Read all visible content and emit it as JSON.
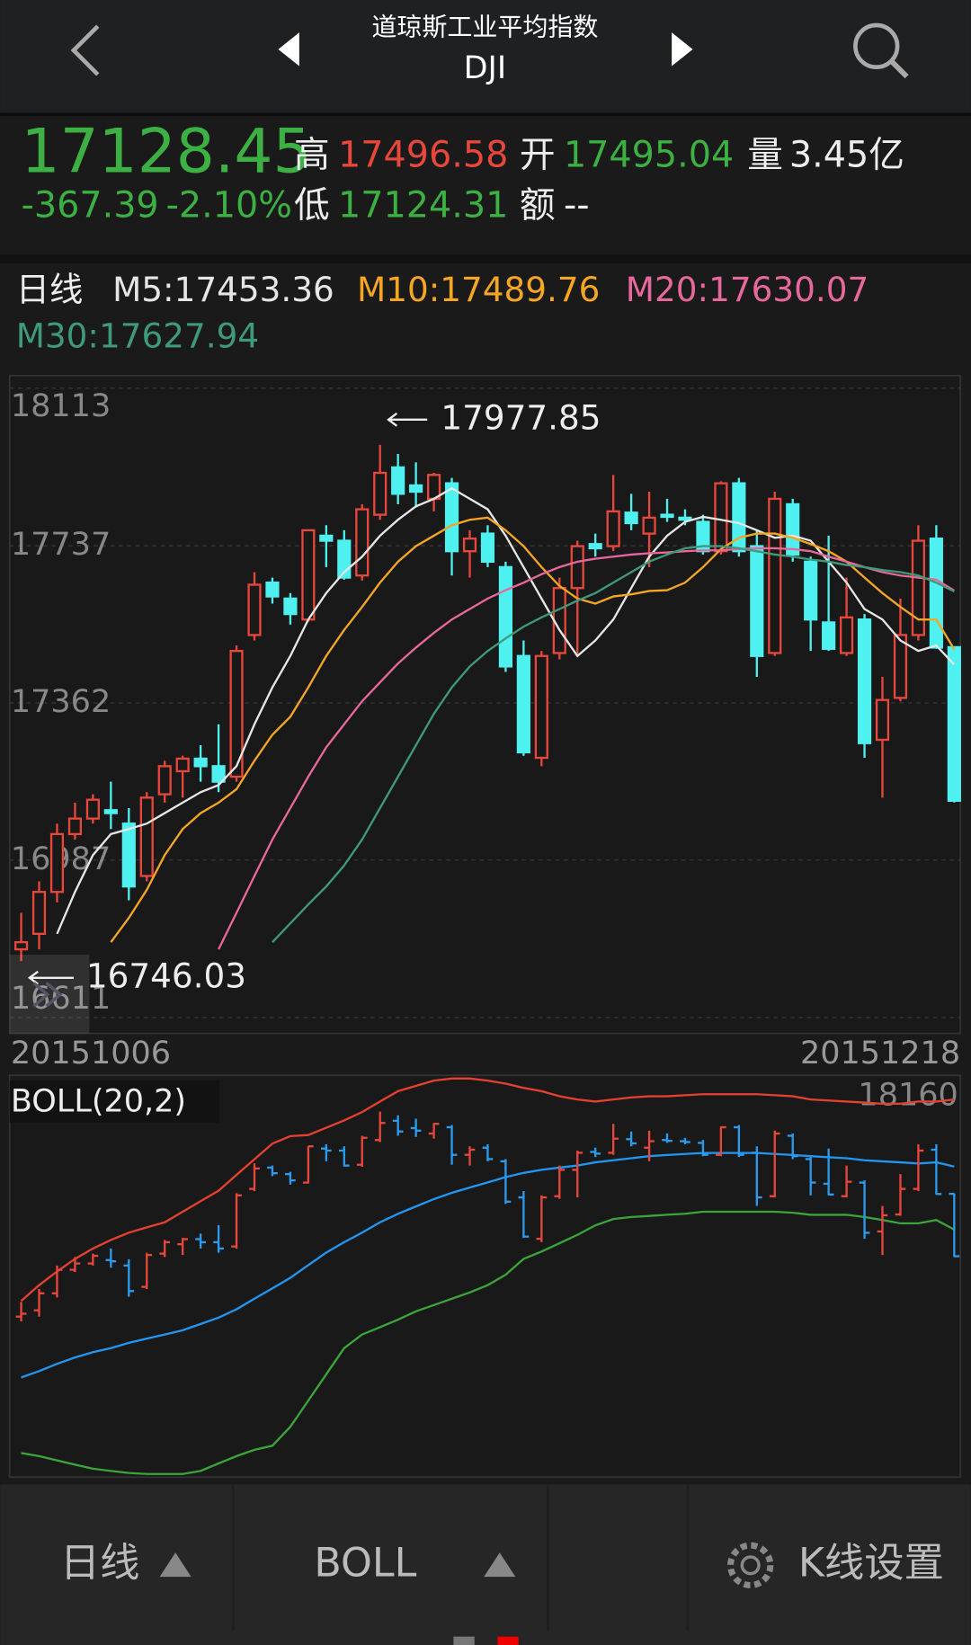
{
  "header": {
    "title": "道琼斯工业平均指数",
    "symbol": "DJI"
  },
  "quote": {
    "price": "17128.45",
    "change": "-367.39",
    "change_pct": "-2.10%",
    "high_label": "高",
    "high": "17496.58",
    "open_label": "开",
    "open": "17495.04",
    "volume_label": "量",
    "volume": "3.45亿",
    "low_label": "低",
    "low": "17124.31",
    "amount_label": "额",
    "amount": "--"
  },
  "chart_data": [
    {
      "type": "candlestick",
      "period": "日线",
      "date_start": "20151006",
      "date_end": "20151218",
      "up_color": "#e8473b",
      "down_color": "#4ef0f0",
      "grid": true,
      "ylim": [
        16611,
        18113
      ],
      "yticks": [
        18113,
        17737,
        17362,
        16987,
        16611
      ],
      "open": [
        16774,
        16811,
        16911,
        17049,
        17086,
        17106,
        17074,
        16949,
        17144,
        17199,
        17229,
        17211,
        17186,
        17524,
        17649,
        17611,
        17561,
        17761,
        17749,
        17666,
        17811,
        17924,
        17881,
        17849,
        17886,
        17724,
        17766,
        17686,
        17474,
        17231,
        17481,
        17636,
        17741,
        17736,
        17816,
        17766,
        17811,
        17804,
        17794,
        17724,
        17886,
        17736,
        17481,
        17836,
        17699,
        17554,
        17481,
        17561,
        17274,
        17374,
        17524,
        17754,
        17495.04
      ],
      "high": [
        16861,
        16936,
        17074,
        17124,
        17144,
        17174,
        17111,
        17149,
        17224,
        17236,
        17261,
        17311,
        17499,
        17674,
        17661,
        17624,
        17774,
        17786,
        17774,
        17836,
        17977.85,
        17956,
        17936,
        17911,
        17899,
        17774,
        17786,
        17699,
        17511,
        17486,
        17661,
        17749,
        17766,
        17906,
        17861,
        17866,
        17849,
        17824,
        17811,
        17891,
        17899,
        17774,
        17866,
        17849,
        17711,
        17761,
        17661,
        17574,
        17424,
        17611,
        17786,
        17786,
        17496.58
      ],
      "low": [
        16746.03,
        16774,
        16886,
        17036,
        17074,
        17061,
        16891,
        16936,
        17124,
        17136,
        17174,
        17149,
        17174,
        17511,
        17599,
        17549,
        17556,
        17686,
        17656,
        17654,
        17799,
        17836,
        17829,
        17819,
        17666,
        17661,
        17686,
        17436,
        17236,
        17211,
        17466,
        17474,
        17711,
        17724,
        17774,
        17686,
        17794,
        17786,
        17716,
        17716,
        17711,
        17424,
        17474,
        17699,
        17486,
        17486,
        17474,
        17231,
        17136,
        17366,
        17511,
        17491,
        17124.31
      ],
      "close": [
        16791,
        16911,
        17049,
        17086,
        17131,
        17099,
        16924,
        17136,
        17211,
        17229,
        17211,
        17174,
        17486,
        17644,
        17616,
        17574,
        17774,
        17749,
        17661,
        17824,
        17911,
        17861,
        17866,
        17906,
        17724,
        17754,
        17699,
        17449,
        17244,
        17474,
        17636,
        17736,
        17731,
        17819,
        17791,
        17804,
        17806,
        17799,
        17724,
        17886,
        17724,
        17474,
        17849,
        17716,
        17561,
        17491,
        17566,
        17266,
        17369,
        17524,
        17749,
        17494,
        17128.45
      ],
      "series": [
        {
          "name": "M5",
          "label": "M5:17453.36",
          "color": "#e6e6e6",
          "values": [
            null,
            null,
            16811,
            16911,
            16999,
            17049,
            17061,
            17074,
            17099,
            17124,
            17149,
            17166,
            17211,
            17311,
            17399,
            17474,
            17561,
            17624,
            17674,
            17711,
            17761,
            17799,
            17831,
            17849,
            17874,
            17849,
            17824,
            17761,
            17686,
            17611,
            17536,
            17474,
            17511,
            17561,
            17636,
            17711,
            17761,
            17794,
            17806,
            17799,
            17791,
            17774,
            17756,
            17761,
            17749,
            17699,
            17649,
            17586,
            17561,
            17511,
            17486,
            17499,
            17453.36
          ]
        },
        {
          "name": "M10",
          "label": "M10:17489.76",
          "color": "#f5a623",
          "values": [
            null,
            null,
            null,
            null,
            null,
            16791,
            16849,
            16916,
            16999,
            17061,
            17099,
            17124,
            17156,
            17224,
            17286,
            17329,
            17399,
            17474,
            17536,
            17591,
            17649,
            17699,
            17736,
            17761,
            17786,
            17799,
            17804,
            17774,
            17736,
            17686,
            17641,
            17611,
            17599,
            17616,
            17621,
            17629,
            17631,
            17649,
            17686,
            17729,
            17756,
            17766,
            17766,
            17756,
            17741,
            17724,
            17699,
            17661,
            17624,
            17591,
            17561,
            17561,
            17489.76
          ]
        },
        {
          "name": "M20",
          "label": "M20:17630.07",
          "color": "#e8679c",
          "values": [
            null,
            null,
            null,
            null,
            null,
            null,
            null,
            null,
            null,
            null,
            null,
            16774,
            16861,
            16949,
            17036,
            17111,
            17186,
            17256,
            17311,
            17366,
            17411,
            17456,
            17494,
            17529,
            17561,
            17586,
            17611,
            17631,
            17649,
            17669,
            17686,
            17699,
            17706,
            17711,
            17716,
            17719,
            17721,
            17724,
            17726,
            17726,
            17729,
            17731,
            17731,
            17729,
            17724,
            17711,
            17699,
            17686,
            17674,
            17666,
            17661,
            17656,
            17630.07
          ]
        },
        {
          "name": "M30",
          "label": "M30:17627.94",
          "color": "#3f9a7a",
          "values": [
            null,
            null,
            null,
            null,
            null,
            null,
            null,
            null,
            null,
            null,
            null,
            null,
            null,
            null,
            16791,
            16836,
            16881,
            16924,
            16974,
            17036,
            17111,
            17186,
            17261,
            17336,
            17399,
            17449,
            17486,
            17516,
            17544,
            17566,
            17586,
            17606,
            17624,
            17649,
            17674,
            17699,
            17716,
            17731,
            17736,
            17736,
            17731,
            17724,
            17716,
            17711,
            17704,
            17699,
            17691,
            17686,
            17679,
            17674,
            17666,
            17649,
            17627.94
          ]
        }
      ]
    },
    {
      "type": "boll",
      "title": "BOLL(20,2)",
      "up_color": "#e8473b",
      "down_color": "#2b9bf0",
      "ylim": [
        15850,
        18200
      ],
      "yticks": [
        18160
      ],
      "series": [
        {
          "color": "#e6412f",
          "values": [
            16866,
            16959,
            17039,
            17113,
            17174,
            17224,
            17267,
            17298,
            17328,
            17390,
            17452,
            17513,
            17606,
            17698,
            17790,
            17834,
            17840,
            17883,
            17926,
            17975,
            18037,
            18098,
            18129,
            18160,
            18172,
            18172,
            18160,
            18142,
            18117,
            18098,
            18068,
            18049,
            18037,
            18049,
            18061,
            18068,
            18068,
            18074,
            18080,
            18080,
            18080,
            18080,
            18074,
            18068,
            18049,
            18043,
            18037,
            18031,
            18024,
            18024,
            18037,
            18037,
            18049
          ]
        },
        {
          "color": "#2196f3",
          "values": [
            16417,
            16454,
            16497,
            16534,
            16565,
            16589,
            16620,
            16645,
            16669,
            16694,
            16731,
            16768,
            16817,
            16879,
            16940,
            17002,
            17076,
            17150,
            17211,
            17267,
            17328,
            17378,
            17421,
            17464,
            17501,
            17532,
            17562,
            17593,
            17618,
            17636,
            17649,
            17661,
            17680,
            17692,
            17704,
            17716,
            17723,
            17729,
            17735,
            17735,
            17735,
            17735,
            17729,
            17723,
            17716,
            17710,
            17704,
            17692,
            17686,
            17680,
            17673,
            17680,
            17655
          ]
        },
        {
          "color": "#3aa63a",
          "values": [
            15973,
            15955,
            15930,
            15905,
            15881,
            15868,
            15856,
            15850,
            15850,
            15850,
            15868,
            15912,
            15955,
            15992,
            16016,
            16127,
            16281,
            16435,
            16589,
            16669,
            16712,
            16756,
            16805,
            16842,
            16879,
            16916,
            16959,
            17020,
            17113,
            17156,
            17205,
            17254,
            17310,
            17347,
            17359,
            17365,
            17372,
            17378,
            17390,
            17390,
            17390,
            17390,
            17390,
            17384,
            17372,
            17372,
            17372,
            17359,
            17341,
            17322,
            17322,
            17341,
            17285
          ]
        }
      ]
    }
  ],
  "tabs": [
    "日线",
    "BOLL",
    "K线设置"
  ]
}
